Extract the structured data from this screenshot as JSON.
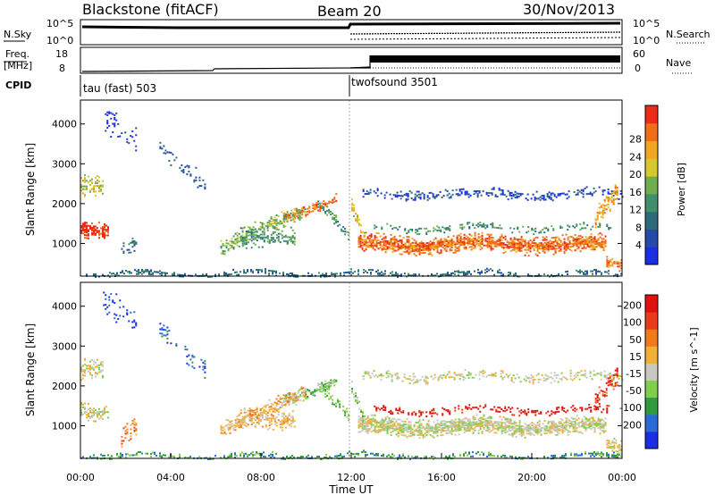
{
  "header": {
    "title": "Blackstone (fitACF)",
    "beam": "Beam 20",
    "date": "30/Nov/2013"
  },
  "status_panels": {
    "nsky": {
      "label": "N.Sky",
      "ticks": [
        "10^5",
        "10^0"
      ],
      "right_ticks": [
        "10^5",
        "10^0"
      ],
      "right_label": "N.Search"
    },
    "freq": {
      "label_line1": "Freq.",
      "label_line2": "[MHz]",
      "ticks": [
        "18",
        "8"
      ],
      "right_ticks": [
        "60",
        "0"
      ],
      "right_label": "Nave"
    },
    "cpid": {
      "label": "CPID",
      "modes": [
        {
          "name": "tau (fast) 503",
          "start_hour": 0
        },
        {
          "name": "twofsound 3501",
          "start_hour": 12
        }
      ]
    }
  },
  "chart_data": [
    {
      "type": "heatmap",
      "name": "power",
      "xlabel": "",
      "ylabel": "Slant Range [km]",
      "xlim": [
        0,
        24
      ],
      "ylim": [
        180,
        4600
      ],
      "yticks": [
        1000,
        2000,
        3000,
        4000
      ],
      "colorbar": {
        "label": "Power [dB]",
        "ticks": [
          4,
          8,
          12,
          16,
          20,
          24,
          28
        ],
        "colors": [
          "#1a2ee6",
          "#2449a8",
          "#2c6c7a",
          "#3f8f6a",
          "#6fae4e",
          "#d6c82c",
          "#f1a61f",
          "#f26d18",
          "#ec2c14"
        ]
      }
    },
    {
      "type": "heatmap",
      "name": "velocity",
      "xlabel": "Time UT",
      "ylabel": "Slant Range [km]",
      "xlim": [
        0,
        24
      ],
      "ylim": [
        180,
        4600
      ],
      "yticks": [
        1000,
        2000,
        3000,
        4000
      ],
      "xticks": [
        "00:00",
        "04:00",
        "08:00",
        "12:00",
        "16:00",
        "20:00",
        "00:00"
      ],
      "colorbar": {
        "label": "Velocity [m s^-1]",
        "ticks": [
          200,
          100,
          50,
          15,
          -15,
          -50,
          -100,
          -200
        ],
        "colors": [
          "#1a2ee6",
          "#2a6bd6",
          "#2f9a3e",
          "#7fcf4a",
          "#c8c8c0",
          "#f2b035",
          "#f07a1c",
          "#ea3a18",
          "#e01010"
        ]
      }
    }
  ]
}
